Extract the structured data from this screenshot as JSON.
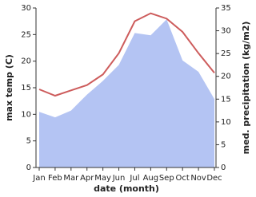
{
  "chart_data": {
    "type": "line",
    "x_label": "date (month)",
    "y_label": "max temp (C)",
    "y2_label": "med. precipitation (kg/m2)",
    "categories": [
      "Jan",
      "Feb",
      "Mar",
      "Apr",
      "May",
      "Jun",
      "Jul",
      "Aug",
      "Sep",
      "Oct",
      "Nov",
      "Dec"
    ],
    "series": [
      {
        "name": "med. precipitation",
        "type": "area",
        "axis": "y2",
        "color": "#b4c4f3",
        "values": [
          12.2,
          11,
          12.5,
          16,
          19,
          22.5,
          29.5,
          29,
          32.5,
          23.5,
          21,
          15
        ]
      },
      {
        "name": "max temp",
        "type": "line",
        "color": "#cd5c5c",
        "values": [
          14.7,
          13.5,
          14.5,
          15.5,
          17.5,
          21.5,
          27.5,
          29,
          28,
          25.5,
          21.5,
          17.8
        ]
      }
    ],
    "ylim": [
      0,
      30
    ],
    "yticks": [
      0,
      5,
      10,
      15,
      20,
      25,
      30
    ],
    "y2lim": [
      0,
      35
    ],
    "y2ticks": [
      0,
      5,
      10,
      15,
      20,
      25,
      30,
      35
    ]
  }
}
